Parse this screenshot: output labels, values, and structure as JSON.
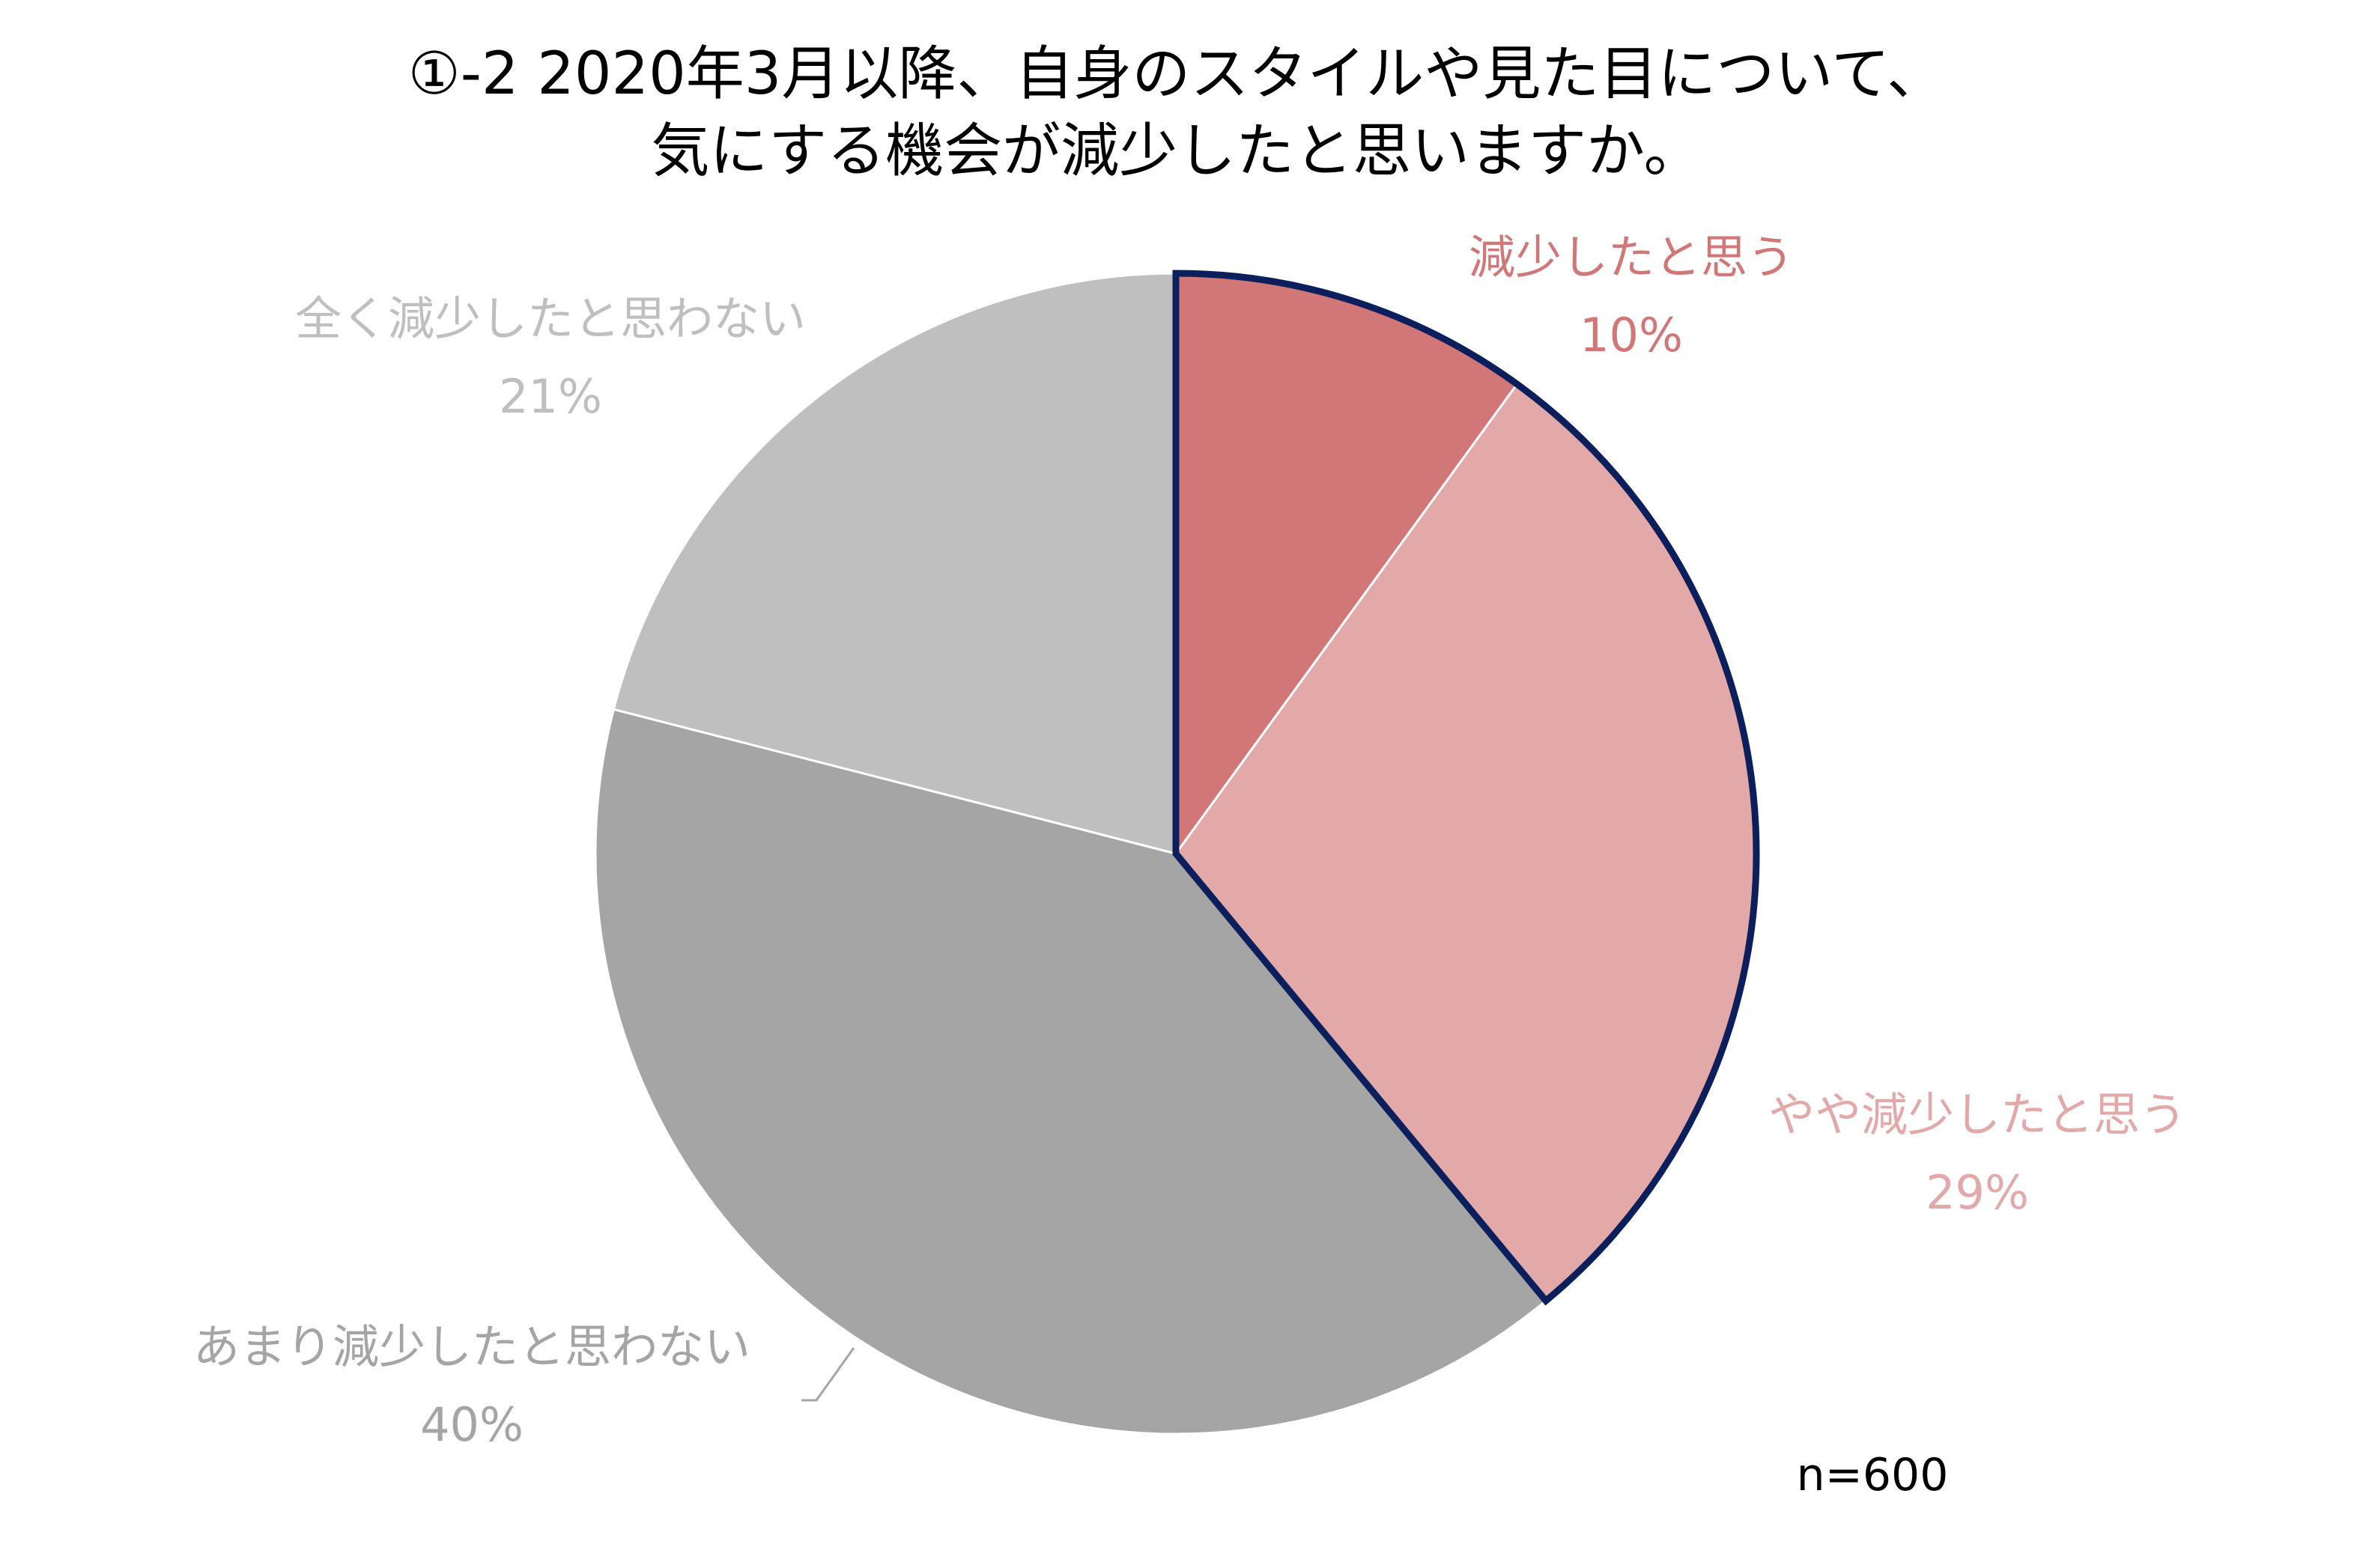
{
  "chart_data": {
    "type": "pie",
    "title": [
      "①-2 2020年3月以降、自身のスタイルや見た目について、",
      "気にする機会が減少したと思いますか。"
    ],
    "start_angle_deg": 0,
    "direction": "clockwise",
    "slices": [
      {
        "label": "減少したと思う",
        "value": 10,
        "value_label": "10%",
        "color": "#d27777",
        "label_color": "#d27777",
        "highlighted": true
      },
      {
        "label": "やや減少したと思う",
        "value": 29,
        "value_label": "29%",
        "color": "#e3a9a9",
        "label_color": "#e3a9a9",
        "highlighted": true
      },
      {
        "label": "あまり減少したと思わない",
        "value": 40,
        "value_label": "40%",
        "color": "#a5a5a5",
        "label_color": "#a5a5a5",
        "highlighted": false
      },
      {
        "label": "全く減少したと思わない",
        "value": 21,
        "value_label": "21%",
        "color": "#bfbfbf",
        "label_color": "#bfbfbf",
        "highlighted": false
      }
    ],
    "highlight_border_color": "#0b1f5c",
    "note": "n=600"
  }
}
